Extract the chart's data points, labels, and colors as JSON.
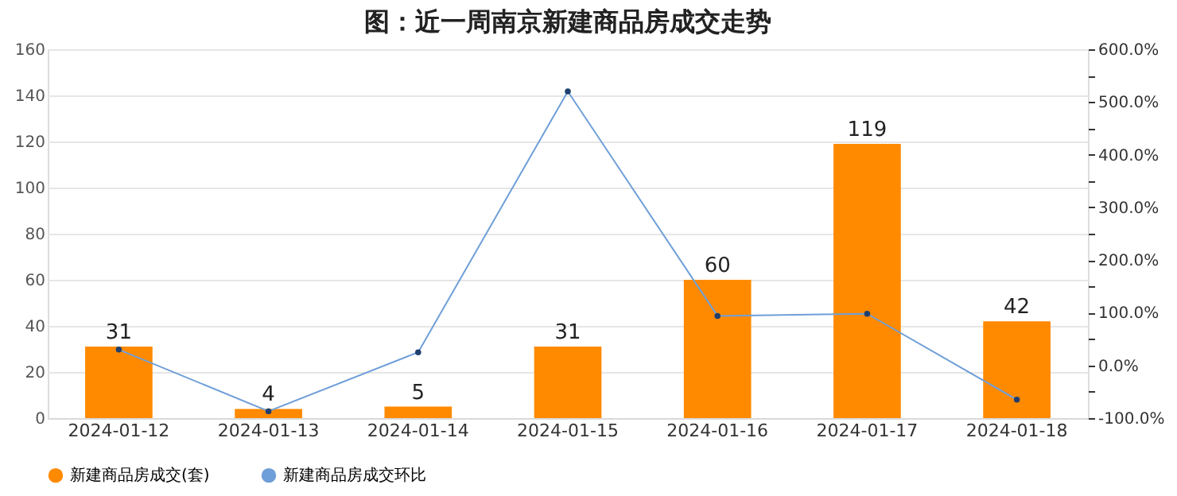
{
  "chart_data": {
    "type": "bar",
    "title": "图：近一周南京新建商品房成交走势",
    "categories": [
      "2024-01-12",
      "2024-01-13",
      "2024-01-14",
      "2024-01-15",
      "2024-01-16",
      "2024-01-17",
      "2024-01-18"
    ],
    "series": [
      {
        "name": "新建商品房成交(套)",
        "color": "#ff8a00",
        "values": [
          31,
          4,
          5,
          31,
          60,
          119,
          42
        ],
        "data_labels": true
      },
      {
        "name": "新建商品房成交环比",
        "type": "line",
        "axis": "y2",
        "color": "#6f9fd8",
        "marker": "circle",
        "values": [
          30,
          -87,
          25,
          520,
          94,
          98,
          -65
        ]
      }
    ],
    "ylim": [
      0,
      160
    ],
    "yticks": [
      0,
      20,
      40,
      60,
      80,
      100,
      120,
      140,
      160
    ],
    "y2lim": [
      -100,
      600
    ],
    "y2ticks": [
      {
        "value": -100,
        "label": "-100.0%"
      },
      {
        "value": -50,
        "label": null
      },
      {
        "value": 0,
        "label": "0.0%"
      },
      {
        "value": 50,
        "label": null
      },
      {
        "value": 100,
        "label": "100.0%"
      },
      {
        "value": 150,
        "label": null
      },
      {
        "value": 200,
        "label": "200.0%"
      },
      {
        "value": 250,
        "label": null
      },
      {
        "value": 300,
        "label": "300.0%"
      },
      {
        "value": 350,
        "label": null
      },
      {
        "value": 400,
        "label": "400.0%"
      },
      {
        "value": 450,
        "label": null
      },
      {
        "value": 500,
        "label": "500.0%"
      },
      {
        "value": 550,
        "label": null
      },
      {
        "value": 600,
        "label": "600.0%"
      }
    ],
    "grid": "y",
    "legend": "bottom"
  }
}
